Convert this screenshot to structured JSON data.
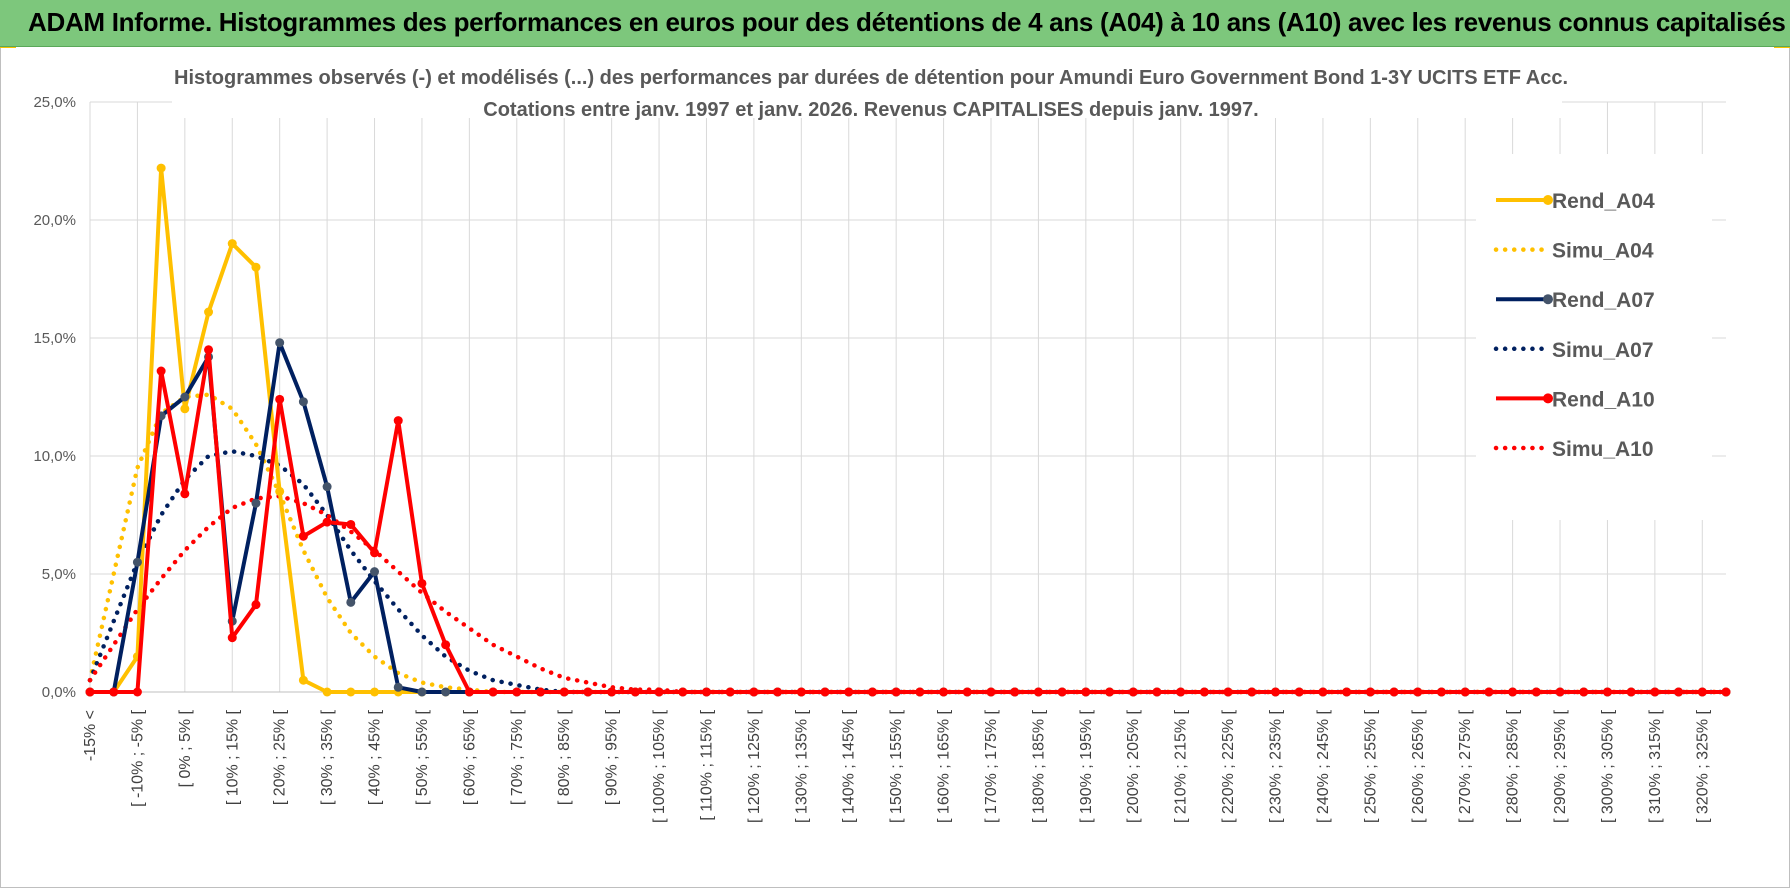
{
  "banner": {
    "title": "ADAM Informe. Histogrammes des performances en euros pour des détentions de 4 ans (A04) à 10 ans (A10) avec les revenus connus capitalisés",
    "color": "#7dc77c"
  },
  "chart_data": {
    "type": "line",
    "title": [
      "Histogrammes observés (-) et modélisés (...) des performances par durées de détention pour Amundi Euro Government Bond 1-3Y UCITS ETF Acc.",
      "Cotations entre janv. 1997 et janv. 2026. Revenus CAPITALISES depuis janv. 1997."
    ],
    "xlabel": "",
    "ylabel": "",
    "ylim": [
      0,
      25
    ],
    "y_ticks": [
      "0,0%",
      "5,0%",
      "10,0%",
      "15,0%",
      "20,0%",
      "25,0%"
    ],
    "y_tick_values": [
      0,
      5,
      10,
      15,
      20,
      25
    ],
    "grid": true,
    "legend_position": "right",
    "categories": [
      "-15% <",
      "[ -10% ; -5% [",
      "[ 0% ; 5% [",
      "[ 10% ; 15% [",
      "[ 20% ; 25% [",
      "[ 30% ; 35% [",
      "[ 40% ; 45% [",
      "[ 50% ; 55% [",
      "[ 60% ; 65% [",
      "[ 70% ; 75% [",
      "[ 80% ; 85% [",
      "[ 90% ; 95% [",
      "[ 100% ; 105% [",
      "[ 110% ; 115% [",
      "[ 120% ; 125% [",
      "[ 130% ; 135% [",
      "[ 140% ; 145% [",
      "[ 150% ; 155% [",
      "[ 160% ; 165% [",
      "[ 170% ; 175% [",
      "[ 180% ; 185% [",
      "[ 190% ; 195% [",
      "[ 200% ; 205% [",
      "[ 210% ; 215% [",
      "[ 220% ; 225% [",
      "[ 230% ; 235% [",
      "[ 240% ; 245% [",
      "[ 250% ; 255% [",
      "[ 260% ; 265% [",
      "[ 270% ; 275% [",
      "[ 280% ; 285% [",
      "[ 290% ; 295% [",
      "[ 300% ; 305% [",
      "[ 310% ; 315% [",
      "[ 320% ; 325% ["
    ],
    "x": [
      -15,
      -10,
      -5,
      0,
      5,
      10,
      15,
      20,
      25,
      30,
      35,
      40,
      45,
      50,
      55,
      60,
      65,
      70,
      75,
      80,
      85,
      90,
      95,
      100,
      105,
      110,
      115,
      120,
      125,
      130,
      135,
      140,
      145,
      150,
      155,
      160,
      165,
      170,
      175,
      180,
      185,
      190,
      195,
      200,
      205,
      210,
      215,
      220,
      225,
      230,
      235,
      240,
      245,
      250,
      255,
      260,
      265,
      270,
      275,
      280,
      285,
      290,
      295,
      300,
      305,
      310,
      315,
      320,
      325,
      330
    ],
    "series": [
      {
        "name": "Rend_A04",
        "style": "solid",
        "color": "#ffc000",
        "values": [
          0.0,
          0.0,
          1.5,
          22.2,
          12.0,
          16.1,
          19.0,
          18.0,
          8.5,
          0.5,
          0.0,
          0.0,
          0.0,
          0.0,
          0.0,
          0.0,
          0.0,
          0.0,
          0.0,
          0.0,
          0.0,
          0.0,
          0.0,
          0.0,
          0.0,
          0.0,
          0.0,
          0.0,
          0.0,
          0.0,
          0.0,
          0.0,
          0.0,
          0.0,
          0.0,
          0.0,
          0.0,
          0.0,
          0.0,
          0.0,
          0.0,
          0.0,
          0.0,
          0.0,
          0.0,
          0.0,
          0.0,
          0.0,
          0.0,
          0.0,
          0.0,
          0.0,
          0.0,
          0.0,
          0.0,
          0.0,
          0.0,
          0.0,
          0.0,
          0.0,
          0.0,
          0.0,
          0.0,
          0.0,
          0.0,
          0.0,
          0.0,
          0.0,
          0.0,
          0.0
        ]
      },
      {
        "name": "Simu_A04",
        "style": "dotted",
        "color": "#ffc000",
        "values": [
          0.5,
          5.0,
          9.5,
          11.8,
          12.5,
          12.6,
          12.0,
          10.5,
          8.4,
          6.0,
          4.0,
          2.5,
          1.5,
          0.8,
          0.4,
          0.2,
          0.1,
          0.0,
          0.0,
          0.0,
          0.0,
          0.0,
          0.0,
          0.0,
          0.0,
          0.0,
          0.0,
          0.0,
          0.0,
          0.0,
          0.0,
          0.0,
          0.0,
          0.0,
          0.0,
          0.0,
          0.0,
          0.0,
          0.0,
          0.0,
          0.0,
          0.0,
          0.0,
          0.0,
          0.0,
          0.0,
          0.0,
          0.0,
          0.0,
          0.0,
          0.0,
          0.0,
          0.0,
          0.0,
          0.0,
          0.0,
          0.0,
          0.0,
          0.0,
          0.0,
          0.0,
          0.0,
          0.0,
          0.0,
          0.0,
          0.0,
          0.0,
          0.0,
          0.0,
          0.0
        ]
      },
      {
        "name": "Rend_A07",
        "style": "solid",
        "color": "#002060",
        "values": [
          0.0,
          0.0,
          5.5,
          11.7,
          12.5,
          14.2,
          3.0,
          8.0,
          14.8,
          12.3,
          8.7,
          3.8,
          5.1,
          0.2,
          0.0,
          0.0,
          0.0,
          0.0,
          0.0,
          0.0,
          0.0,
          0.0,
          0.0,
          0.0,
          0.0,
          0.0,
          0.0,
          0.0,
          0.0,
          0.0,
          0.0,
          0.0,
          0.0,
          0.0,
          0.0,
          0.0,
          0.0,
          0.0,
          0.0,
          0.0,
          0.0,
          0.0,
          0.0,
          0.0,
          0.0,
          0.0,
          0.0,
          0.0,
          0.0,
          0.0,
          0.0,
          0.0,
          0.0,
          0.0,
          0.0,
          0.0,
          0.0,
          0.0,
          0.0,
          0.0,
          0.0,
          0.0,
          0.0,
          0.0,
          0.0,
          0.0,
          0.0,
          0.0,
          0.0,
          0.0
        ]
      },
      {
        "name": "Simu_A07",
        "style": "dotted",
        "color": "#002060",
        "values": [
          0.5,
          3.0,
          5.5,
          7.5,
          9.0,
          10.0,
          10.2,
          10.0,
          9.6,
          8.8,
          7.5,
          6.0,
          4.7,
          3.5,
          2.4,
          1.5,
          0.9,
          0.5,
          0.3,
          0.1,
          0.0,
          0.0,
          0.0,
          0.0,
          0.0,
          0.0,
          0.0,
          0.0,
          0.0,
          0.0,
          0.0,
          0.0,
          0.0,
          0.0,
          0.0,
          0.0,
          0.0,
          0.0,
          0.0,
          0.0,
          0.0,
          0.0,
          0.0,
          0.0,
          0.0,
          0.0,
          0.0,
          0.0,
          0.0,
          0.0,
          0.0,
          0.0,
          0.0,
          0.0,
          0.0,
          0.0,
          0.0,
          0.0,
          0.0,
          0.0,
          0.0,
          0.0,
          0.0,
          0.0,
          0.0,
          0.0,
          0.0,
          0.0,
          0.0,
          0.0
        ]
      },
      {
        "name": "Rend_A10",
        "style": "solid",
        "color": "#ff0000",
        "values": [
          0.0,
          0.0,
          0.0,
          13.6,
          8.4,
          14.5,
          2.3,
          3.7,
          12.4,
          6.6,
          7.2,
          7.1,
          5.9,
          11.5,
          4.6,
          2.0,
          0.0,
          0.0,
          0.0,
          0.0,
          0.0,
          0.0,
          0.0,
          0.0,
          0.0,
          0.0,
          0.0,
          0.0,
          0.0,
          0.0,
          0.0,
          0.0,
          0.0,
          0.0,
          0.0,
          0.0,
          0.0,
          0.0,
          0.0,
          0.0,
          0.0,
          0.0,
          0.0,
          0.0,
          0.0,
          0.0,
          0.0,
          0.0,
          0.0,
          0.0,
          0.0,
          0.0,
          0.0,
          0.0,
          0.0,
          0.0,
          0.0,
          0.0,
          0.0,
          0.0,
          0.0,
          0.0,
          0.0,
          0.0,
          0.0,
          0.0,
          0.0,
          0.0,
          0.0,
          0.0
        ]
      },
      {
        "name": "Simu_A10",
        "style": "dotted",
        "color": "#ff0000",
        "values": [
          0.5,
          2.0,
          3.5,
          4.8,
          6.0,
          7.0,
          7.8,
          8.2,
          8.3,
          8.0,
          7.5,
          6.8,
          6.0,
          5.1,
          4.2,
          3.4,
          2.7,
          2.0,
          1.5,
          1.0,
          0.6,
          0.4,
          0.2,
          0.1,
          0.1,
          0.0,
          0.0,
          0.0,
          0.0,
          0.0,
          0.0,
          0.0,
          0.0,
          0.0,
          0.0,
          0.0,
          0.0,
          0.0,
          0.0,
          0.0,
          0.0,
          0.0,
          0.0,
          0.0,
          0.0,
          0.0,
          0.0,
          0.0,
          0.0,
          0.0,
          0.0,
          0.0,
          0.0,
          0.0,
          0.0,
          0.0,
          0.0,
          0.0,
          0.0,
          0.0,
          0.0,
          0.0,
          0.0,
          0.0,
          0.0,
          0.0,
          0.0,
          0.0,
          0.0,
          0.0
        ]
      }
    ]
  }
}
